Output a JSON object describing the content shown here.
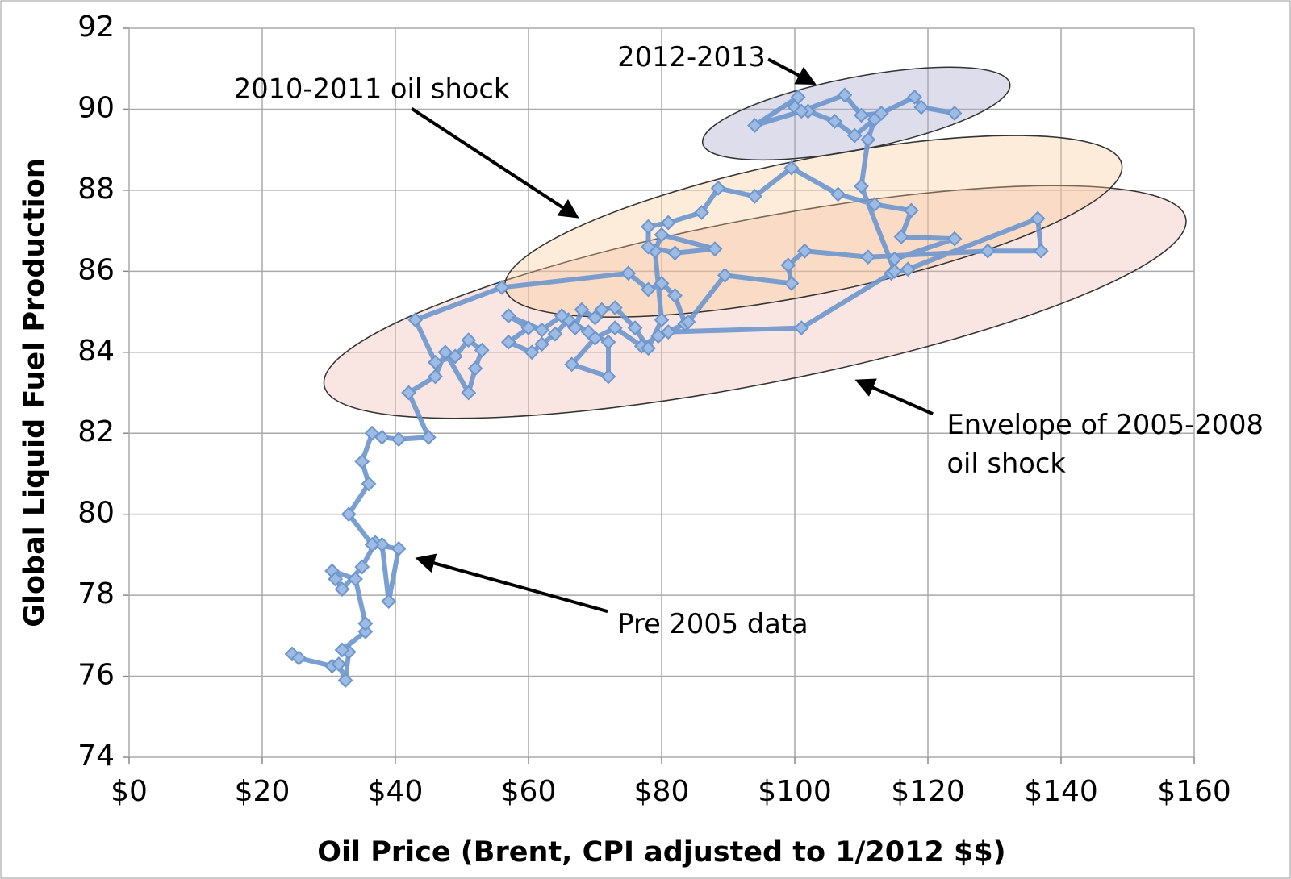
{
  "chart_data": {
    "type": "line",
    "xlabel": "Oil Price (Brent, CPI adjusted to 1/2012 $$)",
    "ylabel": "Global Liquid Fuel Production",
    "xlim": [
      0,
      160
    ],
    "ylim": [
      74,
      92
    ],
    "xticks": [
      {
        "value": 0,
        "label": "$0"
      },
      {
        "value": 20,
        "label": "$20"
      },
      {
        "value": 40,
        "label": "$40"
      },
      {
        "value": 60,
        "label": "$60"
      },
      {
        "value": 80,
        "label": "$80"
      },
      {
        "value": 100,
        "label": "$100"
      },
      {
        "value": 120,
        "label": "$120"
      },
      {
        "value": 140,
        "label": "$140"
      },
      {
        "value": 160,
        "label": "$160"
      }
    ],
    "yticks": [
      74,
      76,
      78,
      80,
      82,
      84,
      86,
      88,
      90,
      92
    ],
    "grid": true,
    "x": [
      24.5,
      25.5,
      30.5,
      31.5,
      32.5,
      33,
      32,
      35.5,
      35.5,
      34,
      30.5,
      31,
      32,
      35,
      37,
      38,
      39,
      40.5,
      36.5,
      33,
      36,
      35,
      36.5,
      38,
      40.5,
      45,
      42,
      46,
      47.5,
      51,
      52,
      53,
      51,
      49,
      46,
      43,
      56,
      75,
      78,
      80,
      82,
      83.5,
      79.5,
      77,
      73,
      70,
      66.5,
      72,
      72,
      69,
      66,
      64,
      62,
      60.5,
      57,
      60,
      57,
      62,
      65,
      67,
      68,
      70,
      71,
      73,
      76,
      78,
      80,
      79,
      80,
      88,
      82,
      78,
      78,
      81,
      86,
      88.5,
      94,
      99.5,
      106.5,
      112,
      117.5,
      116,
      124,
      115,
      114.5,
      117,
      136.5,
      137,
      129,
      111,
      101.5,
      99,
      99.5,
      89.5,
      84,
      81,
      101,
      115,
      110,
      111,
      112,
      109,
      106,
      102,
      100,
      100.5,
      94,
      101,
      107.5,
      110,
      113,
      118,
      119,
      124
    ],
    "series": [
      {
        "color": "#6c96cd",
        "values": [
          76.55,
          76.45,
          76.25,
          76.3,
          75.9,
          76.6,
          76.65,
          77.1,
          77.3,
          78.4,
          78.6,
          78.4,
          78.15,
          78.7,
          79.3,
          79.25,
          77.85,
          79.15,
          79.25,
          80,
          80.75,
          81.3,
          82,
          81.9,
          81.85,
          81.9,
          83,
          83.4,
          84,
          83,
          83.6,
          84.05,
          84.3,
          83.9,
          83.75,
          84.8,
          85.6,
          85.95,
          85.55,
          85.7,
          85.4,
          84.7,
          84.4,
          84.15,
          84.6,
          84.35,
          83.7,
          83.4,
          84.25,
          84.5,
          84.8,
          84.45,
          84.2,
          84,
          84.25,
          84.6,
          84.9,
          84.55,
          84.9,
          84.6,
          85.05,
          84.85,
          85.05,
          85.1,
          84.6,
          84.1,
          84.8,
          86.5,
          86.9,
          86.55,
          86.45,
          86.6,
          87.1,
          87.2,
          87.45,
          88.05,
          87.85,
          88.55,
          87.9,
          87.65,
          87.5,
          86.85,
          86.8,
          86.3,
          85.95,
          86.05,
          87.3,
          86.5,
          86.5,
          86.35,
          86.5,
          86.15,
          85.7,
          85.9,
          84.75,
          84.5,
          84.6,
          86,
          88.1,
          89.25,
          89.75,
          89.35,
          89.7,
          89.95,
          90.05,
          90.3,
          89.6,
          89.95,
          90.35,
          89.85,
          89.9,
          90.3,
          90.05,
          89.9
        ]
      }
    ],
    "annotations": [
      {
        "text": "2012-2013"
      },
      {
        "text": "2010-2011 oil shock"
      },
      {
        "lines": [
          "Envelope of 2005-2008",
          "oil shock"
        ]
      },
      {
        "text": "Pre 2005 data"
      }
    ]
  }
}
